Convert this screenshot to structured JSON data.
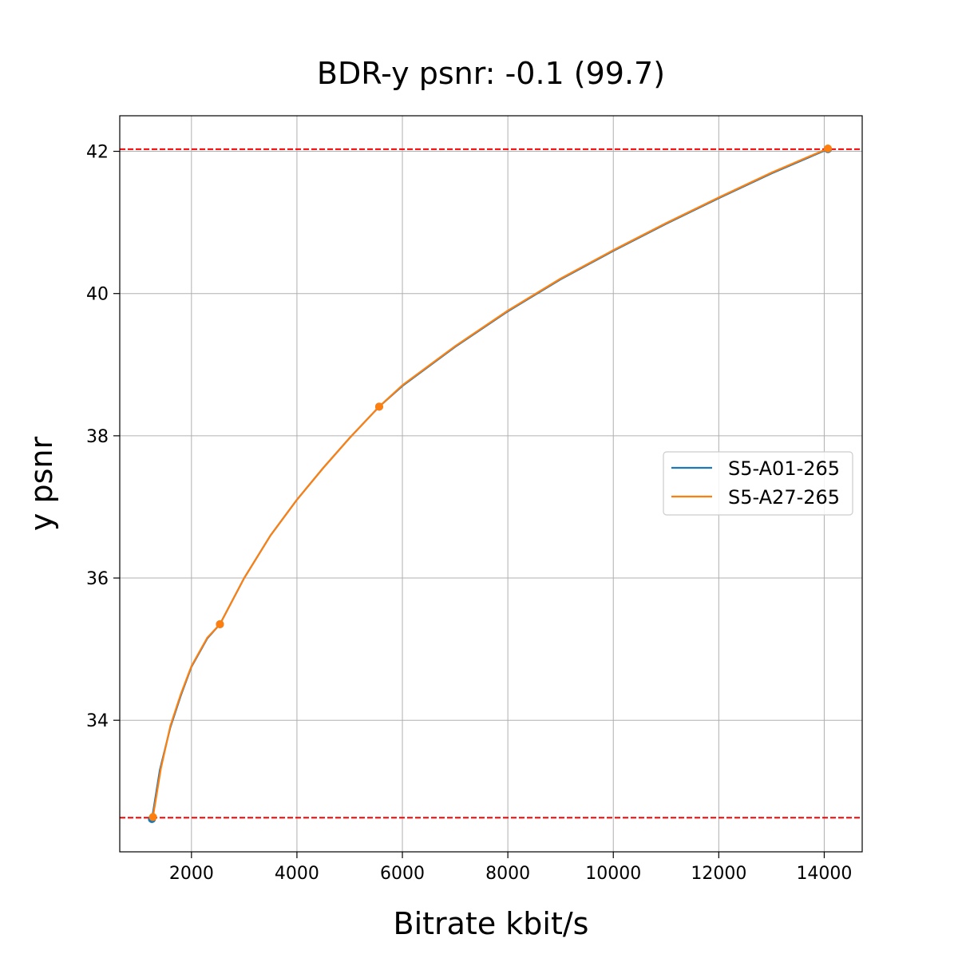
{
  "chart_data": {
    "type": "line",
    "title": "BDR-y psnr: -0.1 (99.7)",
    "xlabel": "Bitrate kbit/s",
    "ylabel": "y psnr",
    "xlim": [
      640,
      14720
    ],
    "ylim": [
      32.15,
      42.5
    ],
    "xticks": [
      2000,
      4000,
      6000,
      8000,
      10000,
      12000,
      14000
    ],
    "yticks": [
      34,
      36,
      38,
      40,
      42
    ],
    "grid": true,
    "legend_position": "center-right",
    "hlines": [
      {
        "y": 42.03,
        "color": "#ff0000",
        "style": "dashed"
      },
      {
        "y": 32.63,
        "color": "#ff0000",
        "style": "dashed"
      }
    ],
    "series": [
      {
        "name": "S5-A01-265",
        "color": "#1f77b4",
        "points": [
          [
            1250,
            32.61
          ],
          [
            2540,
            35.35
          ],
          [
            5560,
            38.41
          ],
          [
            14070,
            42.03
          ]
        ],
        "curve": [
          [
            1250,
            32.61
          ],
          [
            1400,
            33.3
          ],
          [
            1600,
            33.9
          ],
          [
            1800,
            34.35
          ],
          [
            2000,
            34.75
          ],
          [
            2300,
            35.15
          ],
          [
            2540,
            35.35
          ],
          [
            3000,
            36.0
          ],
          [
            3500,
            36.6
          ],
          [
            4000,
            37.1
          ],
          [
            4500,
            37.55
          ],
          [
            5000,
            37.97
          ],
          [
            5560,
            38.41
          ],
          [
            6000,
            38.7
          ],
          [
            7000,
            39.25
          ],
          [
            8000,
            39.75
          ],
          [
            9000,
            40.2
          ],
          [
            10000,
            40.6
          ],
          [
            11000,
            40.98
          ],
          [
            12000,
            41.34
          ],
          [
            13000,
            41.69
          ],
          [
            14070,
            42.03
          ]
        ]
      },
      {
        "name": "S5-A27-265",
        "color": "#ff7f0e",
        "points": [
          [
            1270,
            32.64
          ],
          [
            2540,
            35.35
          ],
          [
            5560,
            38.41
          ],
          [
            14070,
            42.04
          ]
        ],
        "curve": [
          [
            1270,
            32.64
          ],
          [
            1420,
            33.32
          ],
          [
            1600,
            33.92
          ],
          [
            1800,
            34.37
          ],
          [
            2000,
            34.76
          ],
          [
            2300,
            35.16
          ],
          [
            2540,
            35.35
          ],
          [
            3000,
            36.0
          ],
          [
            3500,
            36.6
          ],
          [
            4000,
            37.1
          ],
          [
            4500,
            37.55
          ],
          [
            5000,
            37.97
          ],
          [
            5560,
            38.41
          ],
          [
            6000,
            38.71
          ],
          [
            7000,
            39.26
          ],
          [
            8000,
            39.76
          ],
          [
            9000,
            40.21
          ],
          [
            10000,
            40.61
          ],
          [
            11000,
            40.99
          ],
          [
            12000,
            41.35
          ],
          [
            13000,
            41.7
          ],
          [
            14070,
            42.04
          ]
        ]
      }
    ]
  }
}
